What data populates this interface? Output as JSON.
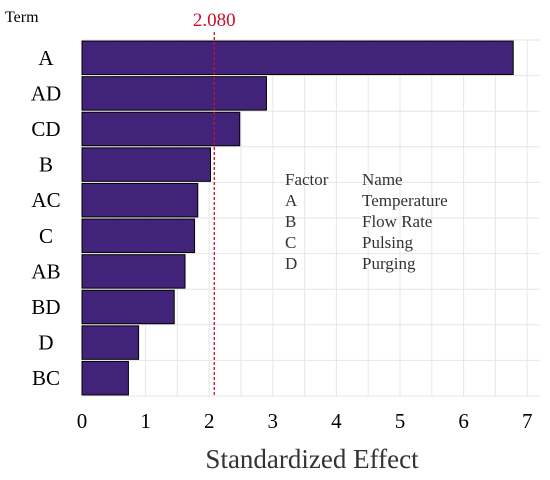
{
  "chart_data": {
    "type": "bar",
    "orientation": "horizontal",
    "term_header": "Term",
    "categories": [
      "A",
      "AD",
      "CD",
      "B",
      "AC",
      "C",
      "AB",
      "BD",
      "D",
      "BC"
    ],
    "values": [
      6.78,
      2.9,
      2.48,
      2.02,
      1.82,
      1.77,
      1.62,
      1.45,
      0.89,
      0.73
    ],
    "xlabel": "Standardized Effect",
    "ylabel": "",
    "xlim": [
      0,
      7.2
    ],
    "xticks": [
      0,
      1,
      2,
      3,
      4,
      5,
      6,
      7
    ],
    "grid": true,
    "bar_color": "#41237a",
    "reference_line": {
      "value": 2.08,
      "label": "2.080",
      "color": "#c8102e",
      "style": "dashed"
    },
    "legend": {
      "placement": "center-right",
      "headers": [
        "Factor",
        "Name"
      ],
      "rows": [
        {
          "factor": "A",
          "name": "Temperature"
        },
        {
          "factor": "B",
          "name": "Flow Rate"
        },
        {
          "factor": "C",
          "name": "Pulsing"
        },
        {
          "factor": "D",
          "name": "Purging"
        }
      ]
    }
  }
}
